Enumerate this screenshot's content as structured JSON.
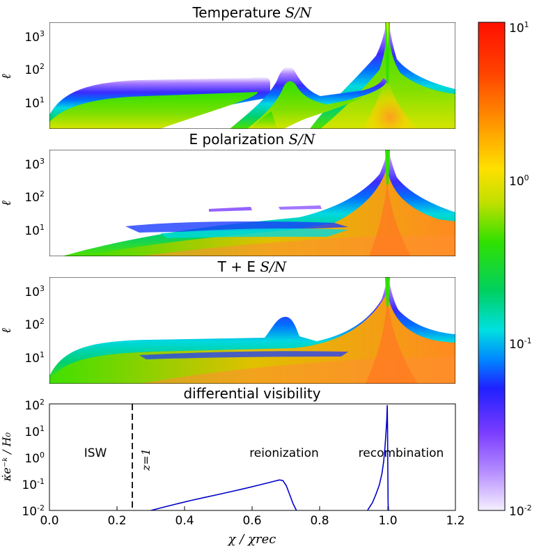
{
  "chart_data": [
    {
      "type": "heatmap",
      "title_text": "Temperature",
      "title_math": "S/N",
      "ylabel": "ℓ",
      "y_ticks": [
        {
          "base": "10",
          "exp": "1",
          "value": 10
        },
        {
          "base": "10",
          "exp": "2",
          "value": 100
        },
        {
          "base": "10",
          "exp": "3",
          "value": 1000
        }
      ],
      "ylim": [
        2,
        3000
      ],
      "xlim": [
        0.0,
        1.2
      ],
      "features": [
        {
          "kind": "low-ell plateau band",
          "x": [
            0.0,
            0.65
          ],
          "ell_top": 40
        },
        {
          "kind": "reionization bump",
          "x": 0.69,
          "ell_peak": 120
        },
        {
          "kind": "recombination spike",
          "x": 1.0,
          "ell_peak": 3000
        }
      ]
    },
    {
      "type": "heatmap",
      "title_text": "E polarization",
      "title_math": "S/N",
      "ylabel": "ℓ",
      "y_ticks": [
        {
          "base": "10",
          "exp": "1",
          "value": 10
        },
        {
          "base": "10",
          "exp": "2",
          "value": 100
        },
        {
          "base": "10",
          "exp": "3",
          "value": 1000
        }
      ],
      "ylim": [
        2,
        3000
      ],
      "xlim": [
        0.0,
        1.2
      ],
      "features": [
        {
          "kind": "low-ell wedge",
          "x": [
            0.1,
            1.2
          ],
          "ell_top": 20
        },
        {
          "kind": "recombination spike",
          "x": 1.0,
          "ell_peak": 3000
        }
      ]
    },
    {
      "type": "heatmap",
      "title_text": "T + E",
      "title_math": "S/N",
      "ylabel": "ℓ",
      "y_ticks": [
        {
          "base": "10",
          "exp": "1",
          "value": 10
        },
        {
          "base": "10",
          "exp": "2",
          "value": 100
        },
        {
          "base": "10",
          "exp": "3",
          "value": 1000
        }
      ],
      "ylim": [
        2,
        3000
      ],
      "xlim": [
        0.0,
        1.2
      ],
      "features": [
        {
          "kind": "low-ell plateau band",
          "x": [
            0.0,
            0.65
          ],
          "ell_top": 40
        },
        {
          "kind": "reionization bump",
          "x": 0.69,
          "ell_peak": 120
        },
        {
          "kind": "recombination spike",
          "x": 1.0,
          "ell_peak": 3000
        }
      ]
    },
    {
      "type": "line",
      "title": "differential visibility",
      "ylabel_math": "κ̇e⁻ᵏ / H₀",
      "xlabel_math": "χ / χrec",
      "xlim": [
        0.0,
        1.2
      ],
      "ylim": [
        0.01,
        100
      ],
      "x_ticks": [
        "0.0",
        "0.2",
        "0.4",
        "0.6",
        "0.8",
        "1.0",
        "1.2"
      ],
      "x_tick_values": [
        0.0,
        0.2,
        0.4,
        0.6,
        0.8,
        1.0,
        1.2
      ],
      "y_ticks": [
        {
          "base": "10",
          "exp": "-2",
          "value": 0.01
        },
        {
          "base": "10",
          "exp": "-1",
          "value": 0.1
        },
        {
          "base": "10",
          "exp": "0",
          "value": 1
        },
        {
          "base": "10",
          "exp": "1",
          "value": 10
        },
        {
          "base": "10",
          "exp": "2",
          "value": 100
        }
      ],
      "series": [
        {
          "name": "reionization",
          "color": "#0000cc",
          "x": [
            0.3,
            0.34,
            0.38,
            0.42,
            0.46,
            0.5,
            0.54,
            0.58,
            0.62,
            0.65,
            0.67,
            0.68,
            0.69,
            0.7,
            0.71,
            0.72,
            0.73
          ],
          "y": [
            0.01,
            0.0135,
            0.018,
            0.024,
            0.031,
            0.04,
            0.052,
            0.068,
            0.09,
            0.112,
            0.13,
            0.14,
            0.132,
            0.085,
            0.04,
            0.018,
            0.01
          ]
        },
        {
          "name": "recombination",
          "color": "#0000cc",
          "x": [
            0.94,
            0.955,
            0.965,
            0.975,
            0.983,
            0.988,
            0.992,
            0.995,
            0.997,
            0.998,
            0.9985,
            0.999,
            0.9995,
            1.0,
            1.0005,
            1.001,
            1.002
          ],
          "y": [
            0.01,
            0.02,
            0.04,
            0.09,
            0.25,
            0.7,
            2.5,
            9.0,
            25,
            60,
            90,
            40,
            8,
            1.0,
            0.1,
            0.02,
            0.01
          ]
        }
      ],
      "vline": {
        "x": 0.245,
        "style": "dashed",
        "label": "z=1"
      },
      "annotations": [
        {
          "text": "ISW",
          "x": 0.135,
          "y": 1.0
        },
        {
          "text": "reionization",
          "x": 0.7,
          "y": 1.0
        },
        {
          "text": "recombination",
          "x": 1.03,
          "y": 1.0
        }
      ]
    }
  ],
  "colorbar": {
    "scale": "log",
    "range": [
      0.01,
      10
    ],
    "ticks": [
      {
        "base": "10",
        "exp": "1",
        "value": 10
      },
      {
        "base": "10",
        "exp": "0",
        "value": 1
      },
      {
        "base": "10",
        "exp": "-1",
        "value": 0.1
      },
      {
        "base": "10",
        "exp": "-2",
        "value": 0.01
      }
    ],
    "colormap_stops": [
      "#f5efff",
      "#b58cff",
      "#7a3cff",
      "#2020ff",
      "#0088ff",
      "#00e0e0",
      "#00d060",
      "#30e000",
      "#c0e000",
      "#ffe000",
      "#ff9000",
      "#ff4000",
      "#ff1000"
    ]
  }
}
